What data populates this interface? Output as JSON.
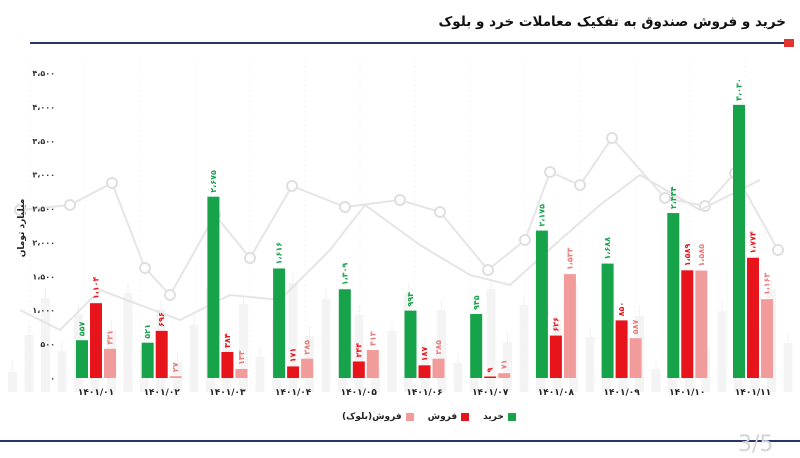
{
  "page": {
    "title": "خرید و فروش صندوق به تفکیک معاملات خرد و بلوک",
    "page_number": "3/5"
  },
  "chart_data": {
    "type": "bar",
    "ylabel": "میلیارد تومان",
    "ylim": [
      0,
      4500
    ],
    "yticks": [
      0,
      500,
      1000,
      1500,
      2000,
      2500,
      3000,
      3500,
      4000,
      4500
    ],
    "ytick_labels": [
      "۰",
      "۵۰۰",
      "۱،۰۰۰",
      "۱،۵۰۰",
      "۲،۰۰۰",
      "۲،۵۰۰",
      "۳،۰۰۰",
      "۳،۵۰۰",
      "۴،۰۰۰",
      "۴،۵۰۰"
    ],
    "grid": false,
    "legend_position": "bottom-center",
    "categories": [
      "۱۴۰۱/۰۱",
      "۱۴۰۱/۰۲",
      "۱۴۰۱/۰۳",
      "۱۴۰۱/۰۴",
      "۱۴۰۱/۰۵",
      "۱۴۰۱/۰۶",
      "۱۴۰۱/۰۷",
      "۱۴۰۱/۰۸",
      "۱۴۰۱/۰۹",
      "۱۴۰۱/۱۰",
      "۱۴۰۱/۱۱"
    ],
    "series": [
      {
        "name": "خرید",
        "color": "#16a34a",
        "label_color": "#16a34a",
        "values": [
          557,
          521,
          2675,
          1616,
          1309,
          994,
          945,
          2175,
          1688,
          2434,
          4030
        ],
        "labels": [
          "۵۵۷",
          "۵۲۱",
          "۲،۶۷۵",
          "۱،۶۱۶",
          "۱،۳۰۹",
          "۹۹۴",
          "۹۴۵",
          "۲،۱۷۵",
          "۱،۶۸۸",
          "۲،۴۳۴",
          "۴،۰۳۰"
        ]
      },
      {
        "name": "فروش",
        "color": "#e8141c",
        "label_color": "#e8141c",
        "values": [
          1104,
          696,
          384,
          171,
          244,
          187,
          9,
          626,
          850,
          1589,
          1774
        ],
        "labels": [
          "۱،۱۰۴",
          "۶۹۶",
          "۳۸۴",
          "۱۷۱",
          "۲۴۴",
          "۱۸۷",
          "۹",
          "۶۲۶",
          "۸۵۰",
          "۱،۵۸۹",
          "۱،۷۷۴"
        ]
      },
      {
        "name": "فروش(بلوک)",
        "color": "#f29b9b",
        "label_color": "#e77b7b",
        "values": [
          431,
          27,
          133,
          285,
          413,
          285,
          71,
          1533,
          587,
          1585,
          1163
        ],
        "labels": [
          "۴۳۱",
          "۲۷",
          "۱۳۳",
          "۲۸۵",
          "۴۱۳",
          "۲۸۵",
          "۷۱",
          "۱،۵۳۳",
          "۵۸۷",
          "۱،۵۸۵",
          "۱،۱۶۳"
        ]
      }
    ]
  },
  "legend": {
    "items": [
      {
        "label": "خرید",
        "color": "#16a34a"
      },
      {
        "label": "فروش",
        "color": "#e8141c"
      },
      {
        "label": "فروش(بلوک)",
        "color": "#f29b9b"
      }
    ]
  }
}
